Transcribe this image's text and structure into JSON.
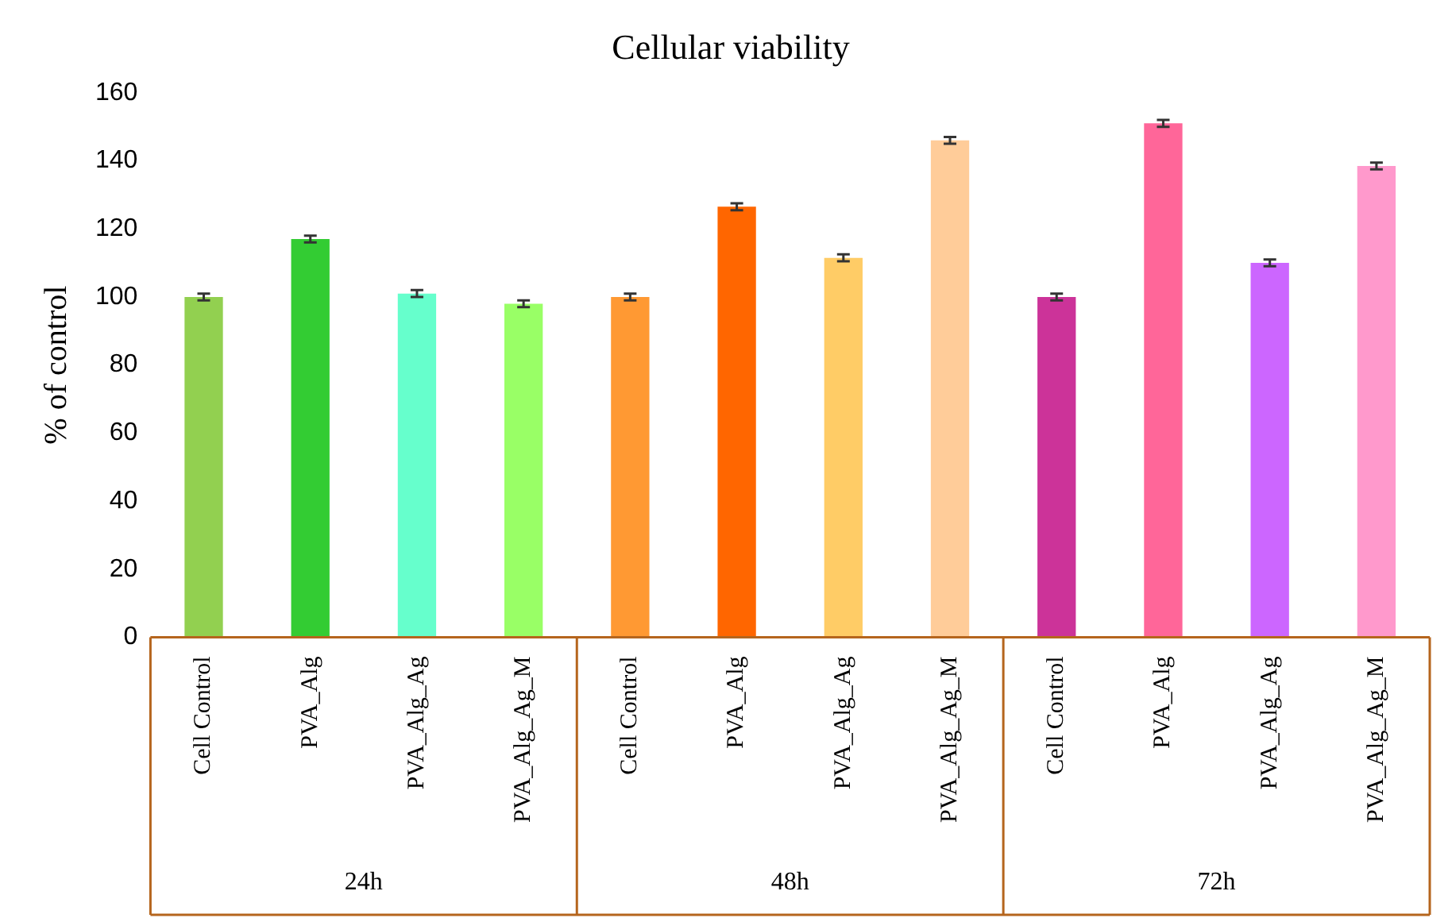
{
  "chart_data": {
    "type": "bar",
    "title": "Cellular viability",
    "ylabel": "% of control",
    "categories": [
      "Cell Control",
      "PVA_Alg",
      "PVA_Alg_Ag",
      "PVA_Alg_Ag_M",
      "Cell Control",
      "PVA_Alg",
      "PVA_Alg_Ag",
      "PVA_Alg_Ag_M",
      "Cell Control",
      "PVA_Alg",
      "PVA_Alg_Ag",
      "PVA_Alg_Ag_M"
    ],
    "values": [
      100,
      117,
      101,
      98,
      100,
      126.5,
      111.5,
      146,
      100,
      151,
      110,
      138.5
    ],
    "errors": [
      1,
      1,
      1,
      1,
      1,
      1,
      1,
      1,
      1,
      1,
      1,
      1
    ],
    "colors": [
      "#92d050",
      "#33cc33",
      "#66ffcc",
      "#99ff66",
      "#ff9933",
      "#ff6600",
      "#ffcc66",
      "#ffcc99",
      "#cc3399",
      "#ff6699",
      "#cc66ff",
      "#ff99cc"
    ],
    "ylim": [
      0,
      160
    ],
    "yticks": [
      0,
      20,
      40,
      60,
      80,
      100,
      120,
      140,
      160
    ],
    "grid": false,
    "legend": false,
    "annotations": [
      "24h",
      "48h",
      "72h"
    ]
  }
}
